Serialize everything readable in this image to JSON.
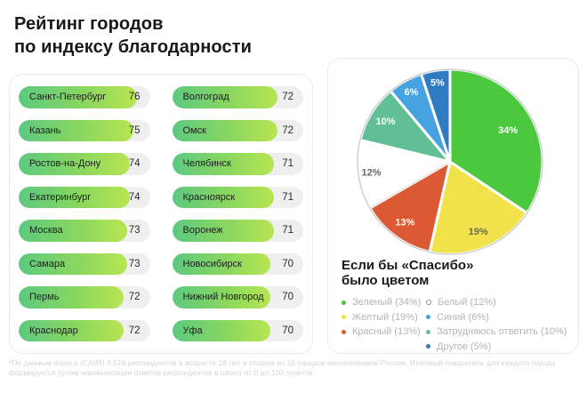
{
  "title": {
    "line1": "Рейтинг городов",
    "line2": "по индексу благодарности"
  },
  "ratings": {
    "scale_min": 40,
    "scale_max": 80,
    "bar_gradient": [
      "#5cc980",
      "#b9e551"
    ],
    "bar_track_color": "#efefef",
    "cities": [
      {
        "name": "Санкт-Петербург",
        "value": 76
      },
      {
        "name": "Казань",
        "value": 75
      },
      {
        "name": "Ростов-на-Дону",
        "value": 74
      },
      {
        "name": "Екатеринбург",
        "value": 74
      },
      {
        "name": "Москва",
        "value": 73
      },
      {
        "name": "Самара",
        "value": 73
      },
      {
        "name": "Пермь",
        "value": 72
      },
      {
        "name": "Краснодар",
        "value": 72
      },
      {
        "name": "Волгоград",
        "value": 72
      },
      {
        "name": "Омск",
        "value": 72
      },
      {
        "name": "Челябинск",
        "value": 71
      },
      {
        "name": "Красноярск",
        "value": 71
      },
      {
        "name": "Воронеж",
        "value": 71
      },
      {
        "name": "Новосибирск",
        "value": 70
      },
      {
        "name": "Нижний Новгород",
        "value": 70
      },
      {
        "name": "Уфа",
        "value": 70
      }
    ]
  },
  "chart_data": {
    "type": "pie",
    "title_line1": "Если бы «Спасибо»",
    "title_line2": "было цветом",
    "slices": [
      {
        "label": "Зеленый",
        "pct": 34,
        "color": "#4cc83e",
        "text_color": "#ffffff"
      },
      {
        "label": "Желтый",
        "pct": 19,
        "color": "#f1e24b",
        "text_color": "#6b6b58"
      },
      {
        "label": "Красный",
        "pct": 13,
        "color": "#dc5a33",
        "text_color": "#ffffff"
      },
      {
        "label": "Белый",
        "pct": 12,
        "color": "#ffffff",
        "text_color": "#676767"
      },
      {
        "label": "Затрудняюсь ответить",
        "pct": 10,
        "color": "#61bf96",
        "text_color": "#ffffff"
      },
      {
        "label": "Синий",
        "pct": 6,
        "color": "#47a2e1",
        "text_color": "#ffffff"
      },
      {
        "label": "Другое",
        "pct": 5,
        "color": "#2e7bc2",
        "text_color": "#ffffff"
      }
    ],
    "legend": {
      "col1": [
        {
          "label": "Зеленый (34%)",
          "color": "#4cc83e",
          "hollow": false
        },
        {
          "label": "Желтый (19%)",
          "color": "#f1e24b",
          "hollow": false
        },
        {
          "label": "Красный (13%)",
          "color": "#dc5a33",
          "hollow": false
        }
      ],
      "col2": [
        {
          "label": "Белый (12%)",
          "color": "#ffffff",
          "hollow": true
        },
        {
          "label": "Синий (6%)",
          "color": "#47a2e1",
          "hollow": false
        },
        {
          "label": "Затрудняюсь ответить (10%)",
          "color": "#61bf96",
          "hollow": false
        },
        {
          "label": "Другое (5%)",
          "color": "#2e7bc2",
          "hollow": false
        }
      ]
    }
  },
  "footnote": "*По данным опроса (CAWI) 3 516 респондентов в возрасте 18 лет и старше из 16 городов-миллионников России. Итоговый показатель для каждого города формируется путем нормализации ответов респондентов в шкалу от 0 до 100 пунктов."
}
